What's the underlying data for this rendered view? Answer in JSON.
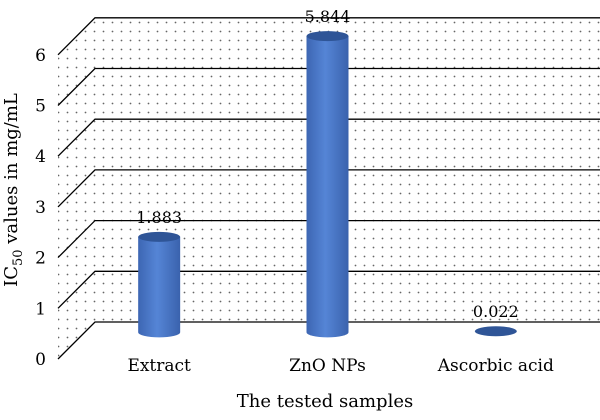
{
  "chart_data": {
    "type": "bar",
    "style": "3d-cylinder",
    "categories": [
      "Extract",
      "ZnO NPs",
      "Ascorbic acid"
    ],
    "values": [
      1.883,
      5.844,
      0.022
    ],
    "data_labels": [
      "1.883",
      "5.844",
      "0.022"
    ],
    "xlabel": "The tested samples",
    "ylabel": {
      "prefix": "IC",
      "subscript": "50",
      "suffix": " values in mg/mL"
    },
    "ylim": [
      0,
      6
    ],
    "yticks": [
      "0",
      "1",
      "2",
      "3",
      "4",
      "5",
      "6"
    ],
    "grid": true,
    "legend": "none",
    "colors": {
      "bar": "#4472C4",
      "bar_top": "#2F5597",
      "wall_dots": "#666666",
      "grid": "#000000"
    }
  }
}
